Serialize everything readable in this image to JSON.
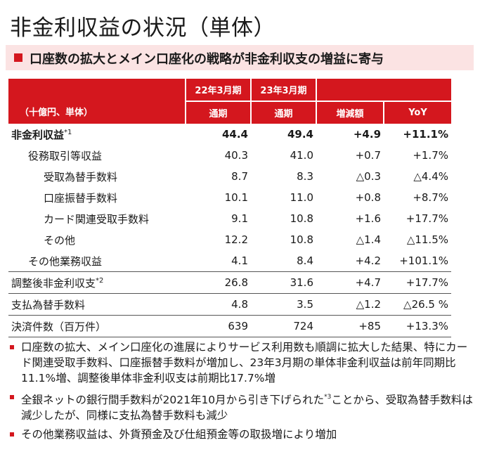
{
  "title": "非金利収益の状況（単体）",
  "subtitle": "口座数の拡大とメイン口座化の戦略が非金利収支の増益に寄与",
  "colors": {
    "accent": "#d4171e",
    "subtitle_bg": "#fbe3e3"
  },
  "table": {
    "unit_label": "（十億円、単体）",
    "year_headers": [
      "22年3月期",
      "23年3月期"
    ],
    "period_headers": [
      "通期",
      "通期"
    ],
    "change_header": "増減額",
    "yoy_header": "YoY",
    "rows": [
      {
        "label": "非金利収益",
        "sup": "*1",
        "v1": "44.4",
        "v2": "49.4",
        "chg": "+4.9",
        "yoy": "+11.1%"
      },
      {
        "label": "役務取引等収益",
        "sup": "",
        "v1": "40.3",
        "v2": "41.0",
        "chg": "+0.7",
        "yoy": "+1.7%"
      },
      {
        "label": "受取為替手数料",
        "sup": "",
        "v1": "8.7",
        "v2": "8.3",
        "chg": "△0.3",
        "yoy": "△4.4%"
      },
      {
        "label": "口座振替手数料",
        "sup": "",
        "v1": "10.1",
        "v2": "11.0",
        "chg": "+0.8",
        "yoy": "+8.7%"
      },
      {
        "label": "カード関連受取手数料",
        "sup": "",
        "v1": "9.1",
        "v2": "10.8",
        "chg": "+1.6",
        "yoy": "+17.7%"
      },
      {
        "label": "その他",
        "sup": "",
        "v1": "12.2",
        "v2": "10.8",
        "chg": "△1.4",
        "yoy": "△11.5%"
      },
      {
        "label": "その他業務収益",
        "sup": "",
        "v1": "4.1",
        "v2": "8.4",
        "chg": "+4.2",
        "yoy": "+101.1%"
      },
      {
        "label": "調整後非金利収支",
        "sup": "*2",
        "v1": "26.8",
        "v2": "31.6",
        "chg": "+4.7",
        "yoy": "+17.7%"
      },
      {
        "label": "支払為替手数料",
        "sup": "",
        "v1": "4.8",
        "v2": "3.5",
        "chg": "△1.2",
        "yoy": "△26.5 %"
      },
      {
        "label": "決済件数（百万件）",
        "sup": "",
        "v1": "639",
        "v2": "724",
        "chg": "+85",
        "yoy": "+13.3%"
      }
    ]
  },
  "bullets": [
    {
      "text": "口座数の拡大、メイン口座化の進展によりサービス利用数も順調に拡大した結果、特にカード関連受取手数料、口座振替手数料が増加し、23年3月期の単体非金利収益は前年同期比11.1%増、調整後単体非金利収支は前期比17.7%増"
    },
    {
      "pre": "全銀ネットの銀行間手数料が2021年10月から引き下げられた",
      "sup": "*3",
      "post": "ことから、受取為替手数料は減少したが、同様に支払為替手数料も減少"
    },
    {
      "text": "その他業務収益は、外貨預金及び仕組預金等の取扱増により増加"
    }
  ]
}
